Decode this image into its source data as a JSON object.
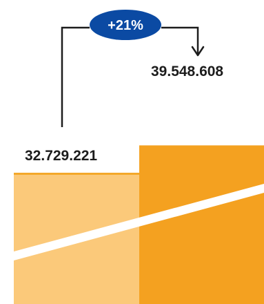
{
  "chart_data": {
    "type": "bar",
    "categories": [
      "",
      ""
    ],
    "values": [
      32729221,
      39548608
    ],
    "value_labels": [
      "32.729.221",
      "39.548.608"
    ],
    "change_label": "+21%",
    "colors": {
      "bar_1": "#fbc97a",
      "bar_1_edge": "#f4a82a",
      "bar_2": "#f4a120",
      "badge": "#0b4aa3",
      "line": "#1c1c1c",
      "stripe": "#ffffff"
    }
  }
}
